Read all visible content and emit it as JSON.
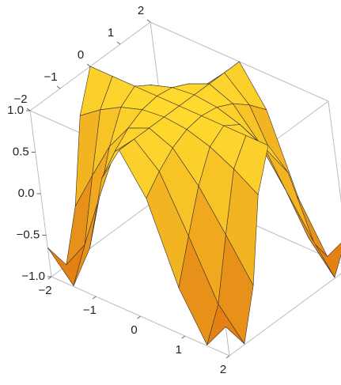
{
  "chart_data": {
    "type": "surface",
    "x": [
      -2,
      -1.5,
      -1,
      -0.5,
      0,
      0.5,
      1,
      1.5,
      2
    ],
    "y": [
      -2,
      -1.5,
      -1,
      -0.5,
      0,
      0.5,
      1,
      1.5,
      2
    ],
    "z": [
      [
        -0.65,
        -0.99,
        -0.42,
        0.54,
        1,
        0.54,
        -0.42,
        -0.99,
        -0.65
      ],
      [
        -0.99,
        -0.63,
        0.07,
        0.73,
        1,
        0.73,
        0.07,
        -0.63,
        -0.99
      ],
      [
        -0.42,
        0.07,
        0.54,
        0.88,
        1,
        0.88,
        0.54,
        0.07,
        -0.42
      ],
      [
        0.54,
        0.73,
        0.88,
        0.97,
        1,
        0.97,
        0.88,
        0.73,
        0.54
      ],
      [
        1,
        1,
        1,
        1,
        1,
        1,
        1,
        1,
        1
      ],
      [
        0.54,
        0.73,
        0.88,
        0.97,
        1,
        0.97,
        0.88,
        0.73,
        0.54
      ],
      [
        -0.42,
        0.07,
        0.54,
        0.88,
        1,
        0.88,
        0.54,
        0.07,
        -0.42
      ],
      [
        -0.99,
        -0.63,
        0.07,
        0.73,
        1,
        0.73,
        0.07,
        -0.63,
        -0.99
      ],
      [
        -0.65,
        -0.99,
        -0.42,
        0.54,
        1,
        0.54,
        -0.42,
        -0.99,
        -0.65
      ]
    ],
    "xlim": [
      -2,
      2
    ],
    "ylim": [
      -2,
      2
    ],
    "zlim": [
      -1,
      1
    ],
    "xticks": [
      {
        "value": -2,
        "label": "−2"
      },
      {
        "value": -1,
        "label": "−1"
      },
      0,
      1,
      2
    ],
    "yticks": [
      {
        "value": -2,
        "label": "−2"
      },
      {
        "value": -1,
        "label": "−1"
      },
      0,
      1,
      2
    ],
    "zticks": [
      {
        "value": -1,
        "label": "−1.0"
      },
      {
        "value": -0.5,
        "label": "−0.5"
      },
      {
        "value": 0,
        "label": "0.0"
      },
      {
        "value": 0.5,
        "label": "0.5"
      },
      {
        "value": 1,
        "label": "1.0"
      }
    ],
    "colors": [
      "#e07810",
      "#ffd92e"
    ]
  }
}
